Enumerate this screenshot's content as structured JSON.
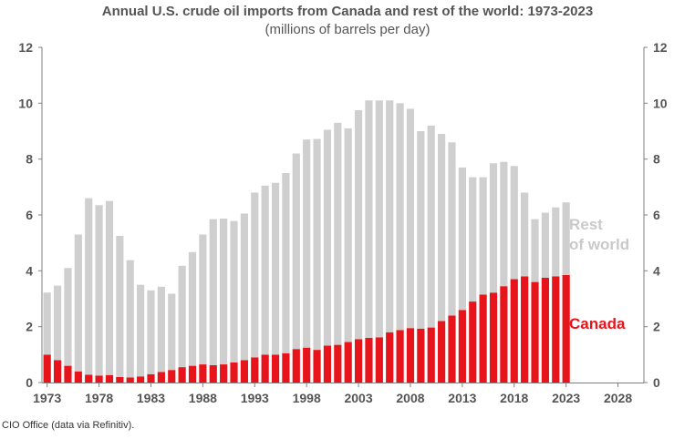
{
  "chart_data": {
    "type": "bar",
    "stacked": true,
    "title": "Annual U.S. crude oil imports from Canada and rest of the world: 1973-2023",
    "subtitle": "(millions of barrels per day)",
    "x_ticks": [
      "1973",
      "1978",
      "1983",
      "1988",
      "1993",
      "1998",
      "2003",
      "2008",
      "2013",
      "2018",
      "2023",
      "2028"
    ],
    "x_range": [
      1973,
      2031
    ],
    "ylim": [
      0,
      12
    ],
    "y_ticks_left": [
      "0",
      "2",
      "4",
      "6",
      "8",
      "10",
      "12"
    ],
    "y_ticks_right": [
      "0",
      "2",
      "4",
      "6",
      "8",
      "10",
      "12"
    ],
    "categories": [
      1973,
      1974,
      1975,
      1976,
      1977,
      1978,
      1979,
      1980,
      1981,
      1982,
      1983,
      1984,
      1985,
      1986,
      1987,
      1988,
      1989,
      1990,
      1991,
      1992,
      1993,
      1994,
      1995,
      1996,
      1997,
      1998,
      1999,
      2000,
      2001,
      2002,
      2003,
      2004,
      2005,
      2006,
      2007,
      2008,
      2009,
      2010,
      2011,
      2012,
      2013,
      2014,
      2015,
      2016,
      2017,
      2018,
      2019,
      2020,
      2021,
      2022,
      2023
    ],
    "series": [
      {
        "name": "Canada",
        "label": "Canada",
        "color": "#e8141b",
        "values": [
          1.0,
          0.8,
          0.6,
          0.4,
          0.28,
          0.25,
          0.27,
          0.2,
          0.18,
          0.22,
          0.3,
          0.38,
          0.45,
          0.55,
          0.6,
          0.65,
          0.62,
          0.65,
          0.72,
          0.8,
          0.9,
          1.0,
          1.0,
          1.05,
          1.2,
          1.25,
          1.17,
          1.32,
          1.35,
          1.45,
          1.55,
          1.6,
          1.62,
          1.8,
          1.88,
          1.95,
          1.93,
          1.97,
          2.2,
          2.4,
          2.6,
          2.9,
          3.15,
          3.22,
          3.45,
          3.7,
          3.8,
          3.6,
          3.75,
          3.8,
          3.85
        ]
      },
      {
        "name": "Rest of world",
        "label": "Rest\nof world",
        "color": "#cfcfcf",
        "values": [
          2.22,
          2.67,
          3.5,
          4.9,
          6.32,
          6.1,
          6.23,
          5.05,
          4.2,
          3.28,
          3.0,
          3.05,
          2.73,
          3.63,
          4.07,
          4.65,
          5.23,
          5.22,
          5.06,
          5.25,
          5.9,
          6.05,
          6.15,
          6.45,
          7.0,
          7.45,
          7.55,
          7.73,
          7.95,
          7.65,
          8.2,
          8.5,
          8.48,
          8.3,
          8.12,
          7.85,
          7.07,
          7.23,
          6.7,
          6.2,
          5.1,
          4.45,
          4.2,
          4.63,
          4.45,
          4.05,
          3.0,
          2.25,
          2.33,
          2.47,
          2.6
        ]
      }
    ],
    "grid": false,
    "legend_placement": "right, inline labels"
  },
  "source": "CIO Office (data via Refinitiv)."
}
